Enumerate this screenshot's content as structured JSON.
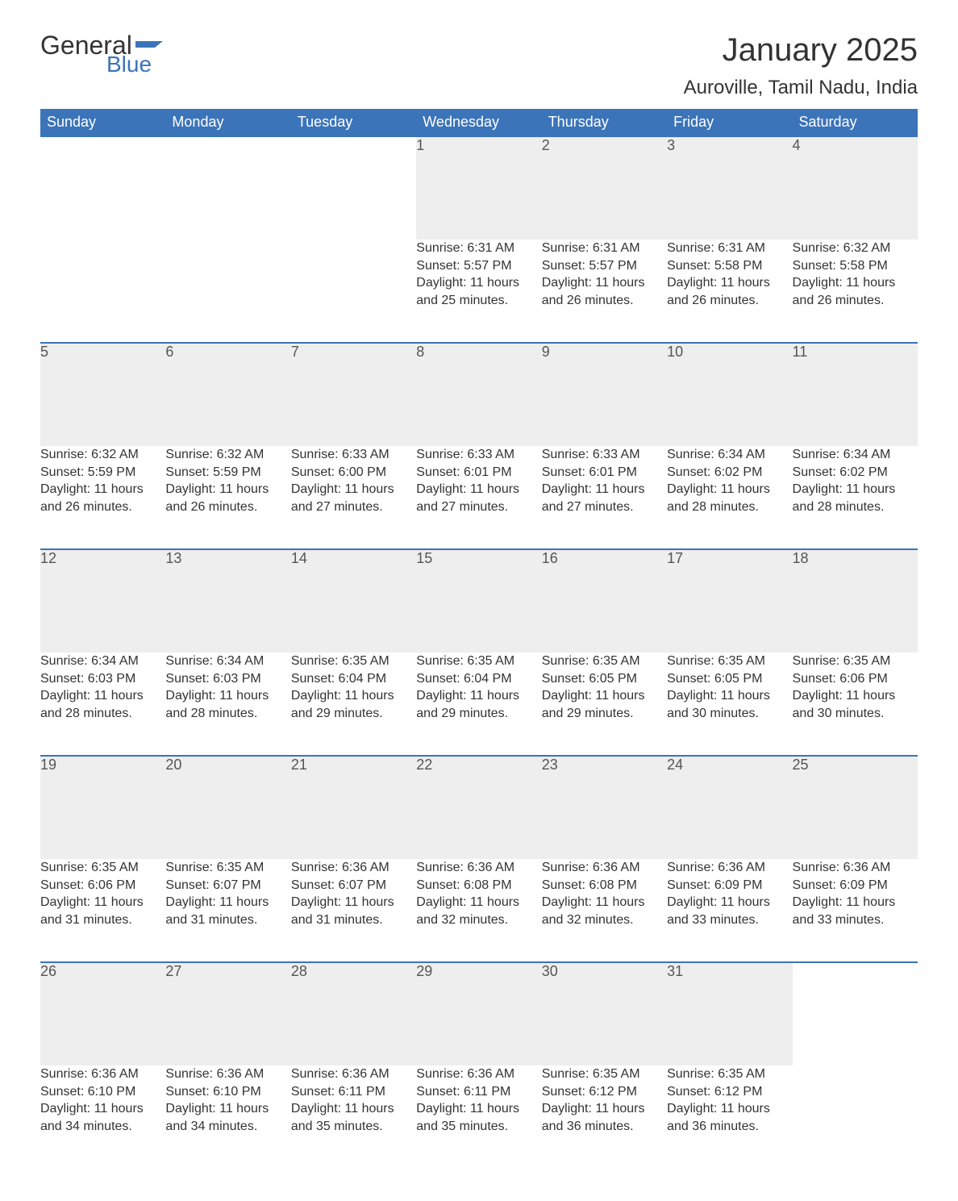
{
  "brand": {
    "word1": "General",
    "word2": "Blue",
    "flag_color": "#3b74b9"
  },
  "title": "January 2025",
  "location": "Auroville, Tamil Nadu, India",
  "colors": {
    "header_bg": "#3b74b9",
    "header_text": "#ffffff",
    "daynum_bg": "#eeeeee",
    "daynum_text": "#555555",
    "row_border": "#3b74b9",
    "body_text": "#333333",
    "page_bg": "#ffffff"
  },
  "typography": {
    "title_fontsize": 40,
    "location_fontsize": 24,
    "header_fontsize": 18,
    "daynum_fontsize": 18,
    "body_fontsize": 16
  },
  "calendar": {
    "type": "table",
    "columns": [
      "Sunday",
      "Monday",
      "Tuesday",
      "Wednesday",
      "Thursday",
      "Friday",
      "Saturday"
    ],
    "weeks": [
      [
        null,
        null,
        null,
        {
          "d": "1",
          "sunrise": "6:31 AM",
          "sunset": "5:57 PM",
          "daylight": "11 hours and 25 minutes."
        },
        {
          "d": "2",
          "sunrise": "6:31 AM",
          "sunset": "5:57 PM",
          "daylight": "11 hours and 26 minutes."
        },
        {
          "d": "3",
          "sunrise": "6:31 AM",
          "sunset": "5:58 PM",
          "daylight": "11 hours and 26 minutes."
        },
        {
          "d": "4",
          "sunrise": "6:32 AM",
          "sunset": "5:58 PM",
          "daylight": "11 hours and 26 minutes."
        }
      ],
      [
        {
          "d": "5",
          "sunrise": "6:32 AM",
          "sunset": "5:59 PM",
          "daylight": "11 hours and 26 minutes."
        },
        {
          "d": "6",
          "sunrise": "6:32 AM",
          "sunset": "5:59 PM",
          "daylight": "11 hours and 26 minutes."
        },
        {
          "d": "7",
          "sunrise": "6:33 AM",
          "sunset": "6:00 PM",
          "daylight": "11 hours and 27 minutes."
        },
        {
          "d": "8",
          "sunrise": "6:33 AM",
          "sunset": "6:01 PM",
          "daylight": "11 hours and 27 minutes."
        },
        {
          "d": "9",
          "sunrise": "6:33 AM",
          "sunset": "6:01 PM",
          "daylight": "11 hours and 27 minutes."
        },
        {
          "d": "10",
          "sunrise": "6:34 AM",
          "sunset": "6:02 PM",
          "daylight": "11 hours and 28 minutes."
        },
        {
          "d": "11",
          "sunrise": "6:34 AM",
          "sunset": "6:02 PM",
          "daylight": "11 hours and 28 minutes."
        }
      ],
      [
        {
          "d": "12",
          "sunrise": "6:34 AM",
          "sunset": "6:03 PM",
          "daylight": "11 hours and 28 minutes."
        },
        {
          "d": "13",
          "sunrise": "6:34 AM",
          "sunset": "6:03 PM",
          "daylight": "11 hours and 28 minutes."
        },
        {
          "d": "14",
          "sunrise": "6:35 AM",
          "sunset": "6:04 PM",
          "daylight": "11 hours and 29 minutes."
        },
        {
          "d": "15",
          "sunrise": "6:35 AM",
          "sunset": "6:04 PM",
          "daylight": "11 hours and 29 minutes."
        },
        {
          "d": "16",
          "sunrise": "6:35 AM",
          "sunset": "6:05 PM",
          "daylight": "11 hours and 29 minutes."
        },
        {
          "d": "17",
          "sunrise": "6:35 AM",
          "sunset": "6:05 PM",
          "daylight": "11 hours and 30 minutes."
        },
        {
          "d": "18",
          "sunrise": "6:35 AM",
          "sunset": "6:06 PM",
          "daylight": "11 hours and 30 minutes."
        }
      ],
      [
        {
          "d": "19",
          "sunrise": "6:35 AM",
          "sunset": "6:06 PM",
          "daylight": "11 hours and 31 minutes."
        },
        {
          "d": "20",
          "sunrise": "6:35 AM",
          "sunset": "6:07 PM",
          "daylight": "11 hours and 31 minutes."
        },
        {
          "d": "21",
          "sunrise": "6:36 AM",
          "sunset": "6:07 PM",
          "daylight": "11 hours and 31 minutes."
        },
        {
          "d": "22",
          "sunrise": "6:36 AM",
          "sunset": "6:08 PM",
          "daylight": "11 hours and 32 minutes."
        },
        {
          "d": "23",
          "sunrise": "6:36 AM",
          "sunset": "6:08 PM",
          "daylight": "11 hours and 32 minutes."
        },
        {
          "d": "24",
          "sunrise": "6:36 AM",
          "sunset": "6:09 PM",
          "daylight": "11 hours and 33 minutes."
        },
        {
          "d": "25",
          "sunrise": "6:36 AM",
          "sunset": "6:09 PM",
          "daylight": "11 hours and 33 minutes."
        }
      ],
      [
        {
          "d": "26",
          "sunrise": "6:36 AM",
          "sunset": "6:10 PM",
          "daylight": "11 hours and 34 minutes."
        },
        {
          "d": "27",
          "sunrise": "6:36 AM",
          "sunset": "6:10 PM",
          "daylight": "11 hours and 34 minutes."
        },
        {
          "d": "28",
          "sunrise": "6:36 AM",
          "sunset": "6:11 PM",
          "daylight": "11 hours and 35 minutes."
        },
        {
          "d": "29",
          "sunrise": "6:36 AM",
          "sunset": "6:11 PM",
          "daylight": "11 hours and 35 minutes."
        },
        {
          "d": "30",
          "sunrise": "6:35 AM",
          "sunset": "6:12 PM",
          "daylight": "11 hours and 36 minutes."
        },
        {
          "d": "31",
          "sunrise": "6:35 AM",
          "sunset": "6:12 PM",
          "daylight": "11 hours and 36 minutes."
        },
        null
      ]
    ],
    "labels": {
      "sunrise": "Sunrise: ",
      "sunset": "Sunset: ",
      "daylight": "Daylight: "
    }
  }
}
